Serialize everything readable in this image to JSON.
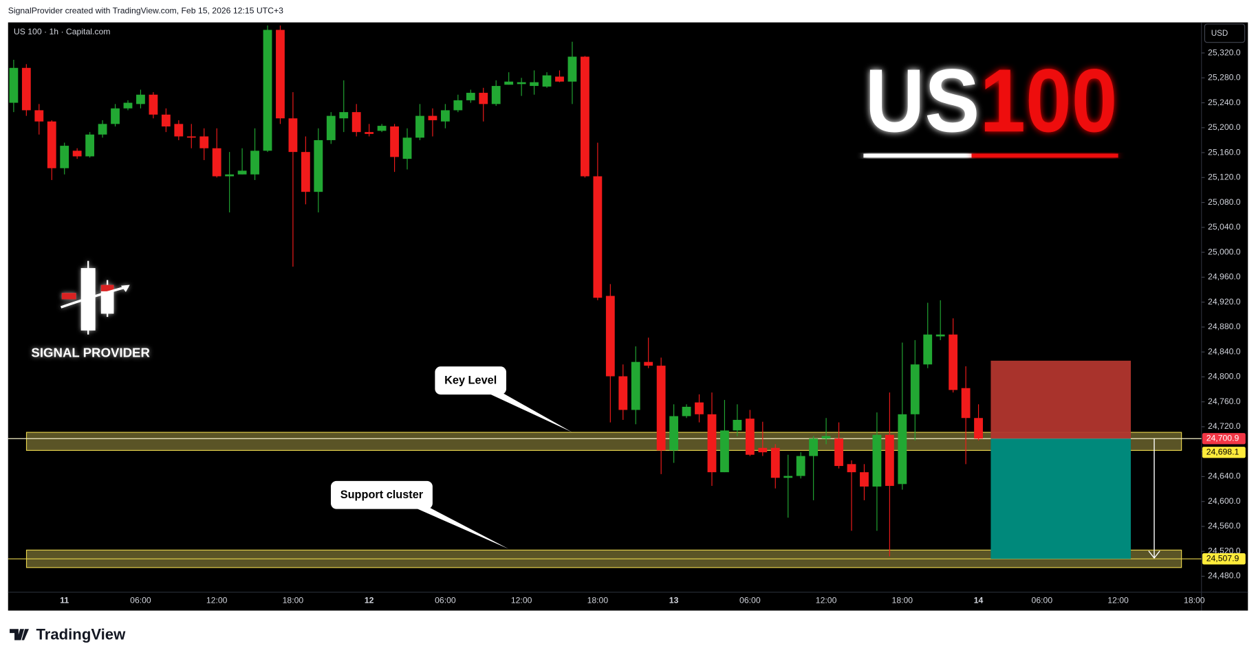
{
  "header": "SignalProvider created with TradingView.com, Feb 15, 2026 12:15 UTC+3",
  "footer": "TradingView",
  "chart_data": {
    "type": "candlestick",
    "symbol_label": "US 100 · 1h · Capital.com",
    "currency": "USD",
    "title": "US",
    "title_highlight": "100",
    "brand": "SIGNAL PROVIDER",
    "up_color": "#22a833",
    "down_color": "#f21b1b",
    "categories": [
      null,
      null,
      null,
      null,
      "11",
      null,
      null,
      null,
      null,
      null,
      "06:00",
      null,
      null,
      null,
      null,
      null,
      "12:00",
      null,
      null,
      null,
      null,
      null,
      "18:00",
      null,
      null,
      null,
      null,
      null,
      "12",
      null,
      null,
      null,
      null,
      null,
      "06:00",
      null,
      null,
      null,
      null,
      null,
      "12:00",
      null,
      null,
      null,
      null,
      null,
      "18:00",
      null,
      null,
      null,
      null,
      null,
      "13",
      null,
      null,
      null,
      null,
      null,
      "06:00",
      null,
      null,
      null,
      null,
      null,
      "12:00",
      null,
      null,
      null,
      null,
      null,
      "18:00",
      null,
      null,
      null,
      null,
      null,
      "14",
      null,
      null,
      null,
      null,
      "06:00",
      null,
      null,
      null,
      null,
      null,
      "12:00",
      null,
      null,
      null,
      null,
      null,
      "18:00"
    ],
    "open": [
      25240,
      25296,
      25228,
      25210,
      25135,
      25163,
      25154,
      25189,
      25206,
      25231,
      25238,
      25253,
      25221,
      25206,
      25186,
      25186,
      25167,
      25122,
      25125,
      25125,
      25163,
      25357,
      25215,
      25161,
      25097,
      25180,
      25215,
      25225,
      25193,
      25195,
      25202,
      25150,
      25184,
      25219,
      25210,
      25228,
      25244,
      25256,
      25238,
      25269,
      25270,
      25267,
      25266,
      25282,
      25274,
      25314,
      25122,
      24930,
      24801,
      24747,
      24824,
      24818,
      24682,
      24737,
      24759,
      24740,
      24647,
      24714,
      24733,
      24686,
      24686,
      24638,
      24641,
      24673,
      24701,
      24701,
      24660,
      24647,
      24624,
      24707,
      24628,
      24740,
      24820,
      24865,
      24868,
      24782,
      24734,
      null,
      null,
      null,
      null,
      null,
      null,
      null,
      null,
      null,
      null,
      null,
      null,
      null,
      null,
      null,
      null,
      null
    ],
    "high": [
      25309,
      25302,
      25238,
      25212,
      25176,
      25167,
      25193,
      25212,
      25238,
      25244,
      25261,
      25257,
      25231,
      25212,
      25206,
      25199,
      25199,
      25161,
      25167,
      25199,
      25364,
      25364,
      25257,
      25186,
      25199,
      25225,
      25276,
      25238,
      25206,
      25206,
      25206,
      25199,
      25238,
      25231,
      25238,
      25253,
      25261,
      25264,
      25276,
      25289,
      25280,
      25292,
      25289,
      25292,
      25338,
      25315,
      25176,
      24949,
      24820,
      24849,
      24863,
      24831,
      24756,
      24756,
      24772,
      24775,
      24763,
      24756,
      24747,
      24728,
      24692,
      24675,
      24679,
      24705,
      24734,
      24727,
      24666,
      24660,
      24743,
      24775,
      24855,
      24859,
      24919,
      24923,
      24894,
      24817,
      24756,
      null,
      null,
      null,
      null,
      null,
      null,
      null,
      null,
      null,
      null,
      null,
      null,
      null,
      null,
      null,
      null,
      null
    ],
    "low": [
      25225,
      25219,
      25189,
      25116,
      25125,
      25150,
      25152,
      25184,
      25202,
      25228,
      25231,
      25215,
      25193,
      25180,
      25167,
      25148,
      25120,
      25064,
      25125,
      25116,
      25161,
      25206,
      24977,
      25077,
      25064,
      25174,
      25193,
      25186,
      25186,
      25193,
      25129,
      25133,
      25180,
      25186,
      25199,
      25225,
      25240,
      25210,
      25235,
      25269,
      25251,
      25253,
      25264,
      25273,
      25238,
      25120,
      24923,
      24727,
      24731,
      24724,
      24814,
      24644,
      24662,
      24734,
      24727,
      24625,
      24647,
      24705,
      24673,
      24673,
      24621,
      24574,
      24637,
      24602,
      24692,
      24653,
      24553,
      24602,
      24553,
      24512,
      24619,
      24698,
      24814,
      24859,
      24775,
      24660,
      24698,
      null,
      null,
      null,
      null,
      null,
      null,
      null,
      null,
      null,
      null,
      null,
      null,
      null,
      null,
      null,
      null,
      null
    ],
    "close": [
      25296,
      25228,
      25210,
      25135,
      25171,
      25154,
      25189,
      25206,
      25231,
      25240,
      25253,
      25221,
      25202,
      25186,
      25184,
      25167,
      25122,
      25125,
      25131,
      25163,
      25357,
      25215,
      25161,
      25097,
      25180,
      25219,
      25225,
      25193,
      25190,
      25203,
      25153,
      25184,
      25219,
      25212,
      25228,
      25244,
      25256,
      25238,
      25267,
      25274,
      25273,
      25273,
      25284,
      25274,
      25314,
      25122,
      24927,
      24801,
      24747,
      24824,
      24818,
      24682,
      24737,
      24752,
      24740,
      24647,
      24714,
      24731,
      24675,
      24679,
      24638,
      24641,
      24673,
      24701,
      24705,
      24657,
      24647,
      24624,
      24707,
      24625,
      24740,
      24820,
      24868,
      24868,
      24779,
      24734,
      24701,
      null,
      null,
      null,
      null,
      null,
      null,
      null,
      null,
      null,
      null,
      null,
      null,
      null,
      null,
      null,
      null,
      null
    ],
    "ylim": [
      24457,
      25369
    ],
    "yticks": [
      {
        "value": 24480,
        "label": "24,480.0"
      },
      {
        "value": 24520,
        "label": "24,520.0"
      },
      {
        "value": 24560,
        "label": "24,560.0"
      },
      {
        "value": 24600,
        "label": "24,600.0"
      },
      {
        "value": 24640,
        "label": "24,640.0"
      },
      {
        "value": 24680,
        "label": "24,680.0"
      },
      {
        "value": 24720,
        "label": "24,720.0"
      },
      {
        "value": 24760,
        "label": "24,760.0"
      },
      {
        "value": 24800,
        "label": "24,800.0"
      },
      {
        "value": 24840,
        "label": "24,840.0"
      },
      {
        "value": 24880,
        "label": "24,880.0"
      },
      {
        "value": 24920,
        "label": "24,920.0"
      },
      {
        "value": 24960,
        "label": "24,960.0"
      },
      {
        "value": 25000,
        "label": "25,000.0"
      },
      {
        "value": 25040,
        "label": "25,040.0"
      },
      {
        "value": 25080,
        "label": "25,080.0"
      },
      {
        "value": 25120,
        "label": "25,120.0"
      },
      {
        "value": 25160,
        "label": "25,160.0"
      },
      {
        "value": 25200,
        "label": "25,200.0"
      },
      {
        "value": 25240,
        "label": "25,240.0"
      },
      {
        "value": 25280,
        "label": "25,280.0"
      },
      {
        "value": 25320,
        "label": "25,320.0"
      }
    ],
    "zones": [
      {
        "label": "Key Level",
        "low": 24682,
        "high": 24711
      },
      {
        "label": "Support cluster",
        "low": 24494,
        "high": 24522
      }
    ],
    "price_tags": [
      {
        "value": 24700.9,
        "label": "24,700.9",
        "color": "#f23645"
      },
      {
        "value": 24698.1,
        "label": "24,698.1",
        "color": "#ffeb3b"
      },
      {
        "value": 24507.9,
        "label": "24,507.9",
        "color": "#ffeb3b"
      }
    ],
    "position": {
      "stop": 24826,
      "stop_color": "#b2362e",
      "target_color": "#00897b"
    }
  }
}
